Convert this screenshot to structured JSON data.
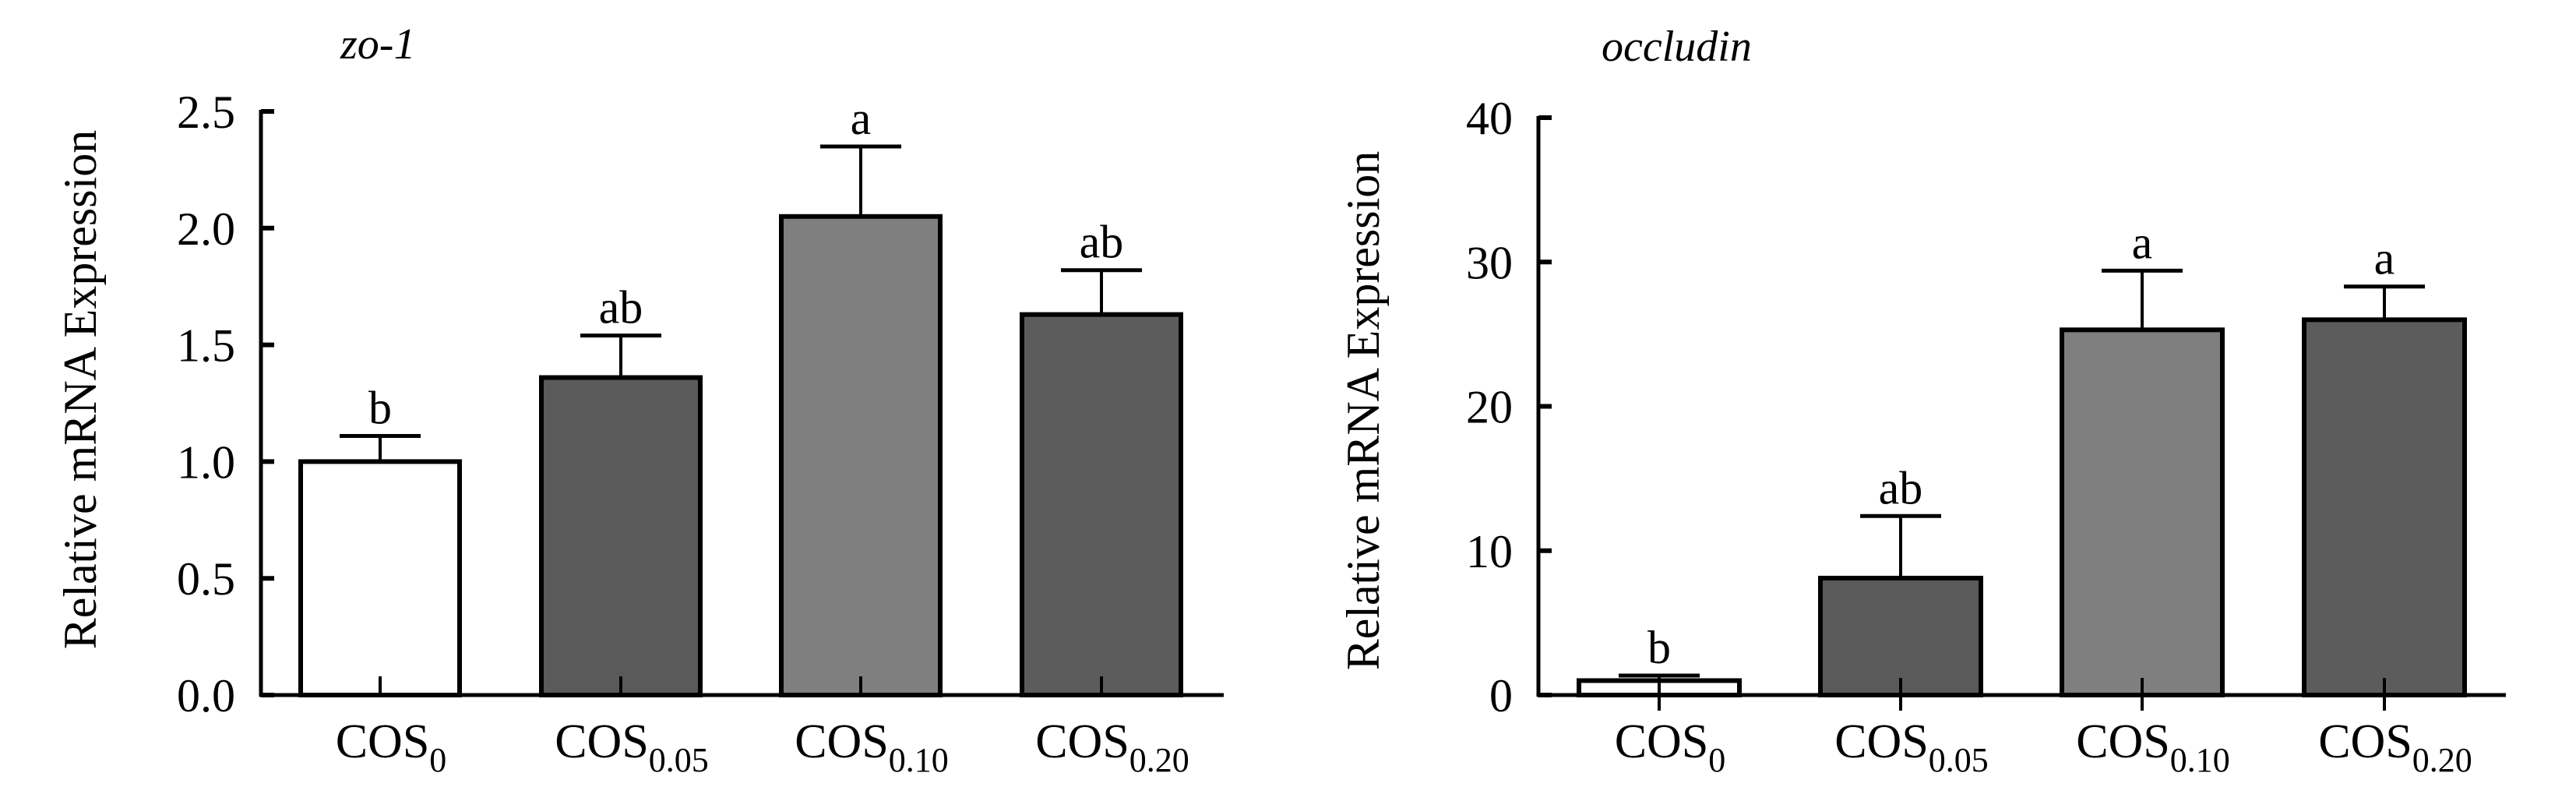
{
  "chart_data": [
    {
      "type": "bar",
      "title": "zo-1",
      "xlabel": "",
      "ylabel": "Relative mRNA Expression",
      "ylim": [
        0,
        2.5
      ],
      "yticks": [
        "0.0",
        "0.5",
        "1.0",
        "1.5",
        "2.0",
        "2.5"
      ],
      "ytick_values": [
        0,
        0.5,
        1.0,
        1.5,
        2.0,
        2.5
      ],
      "categories": [
        {
          "main": "COS",
          "sub": "0"
        },
        {
          "main": "COS",
          "sub": "0.05"
        },
        {
          "main": "COS",
          "sub": "0.10"
        },
        {
          "main": "COS",
          "sub": "0.20"
        }
      ],
      "values": [
        1.0,
        1.36,
        2.05,
        1.63
      ],
      "errors": [
        0.11,
        0.18,
        0.3,
        0.19
      ],
      "significance": [
        "b",
        "ab",
        "a",
        "ab"
      ],
      "colors": [
        "#ffffff",
        "#5a5a5a",
        "#7f7f7f",
        "#5c5c5c"
      ],
      "grid": false
    },
    {
      "type": "bar",
      "title": "occludin",
      "xlabel": "",
      "ylabel": "Relative mRNA Expression",
      "ylim": [
        0,
        40
      ],
      "yticks": [
        "0",
        "10",
        "20",
        "30",
        "40"
      ],
      "ytick_values": [
        0,
        10,
        20,
        30,
        40
      ],
      "categories": [
        {
          "main": "COS",
          "sub": "0"
        },
        {
          "main": "COS",
          "sub": "0.05"
        },
        {
          "main": "COS",
          "sub": "0.10"
        },
        {
          "main": "COS",
          "sub": "0.20"
        }
      ],
      "values": [
        1.0,
        8.1,
        25.3,
        26.0
      ],
      "errors": [
        0.35,
        4.3,
        4.1,
        2.3
      ],
      "significance": [
        "b",
        "ab",
        "a",
        "a"
      ],
      "colors": [
        "#ffffff",
        "#5a5a5a",
        "#7f7f7f",
        "#5c5c5c"
      ],
      "grid": false
    }
  ]
}
